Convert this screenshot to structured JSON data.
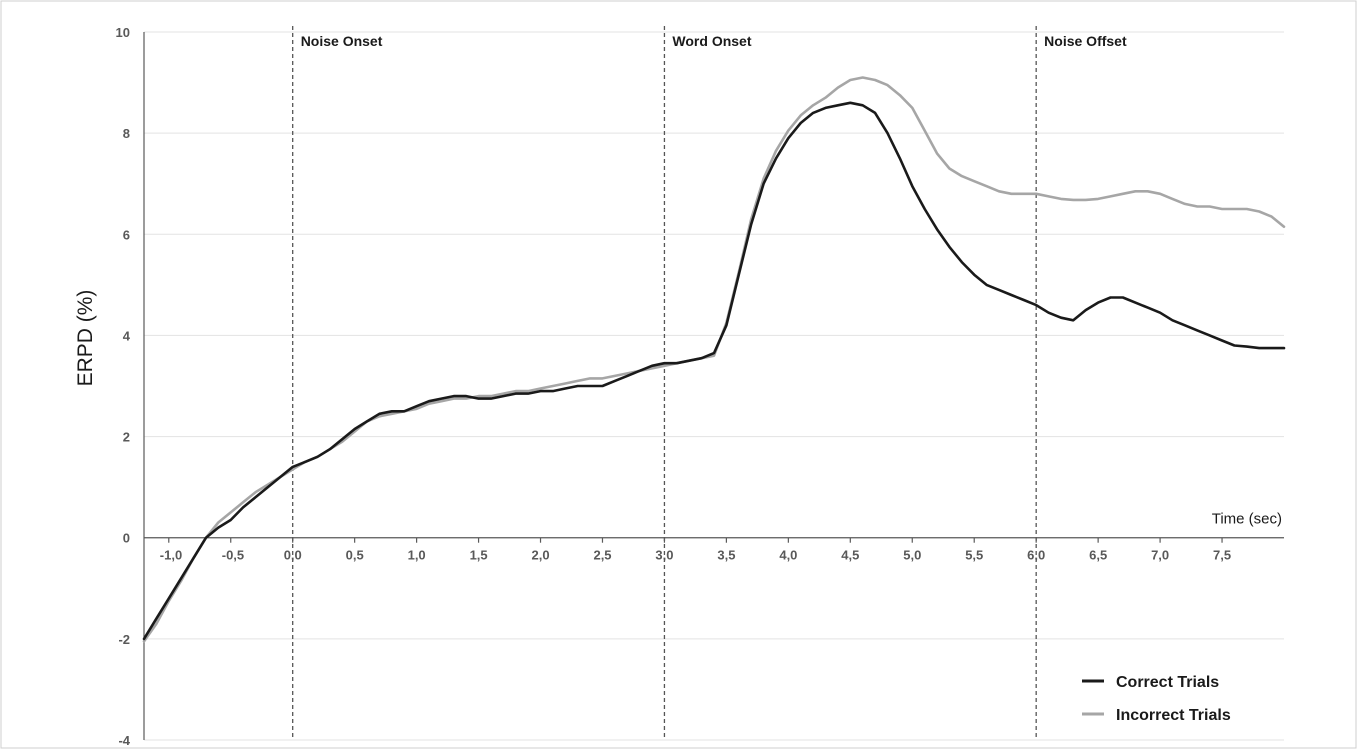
{
  "chart_data": {
    "type": "line",
    "title": "",
    "ylabel": "ERPD (%)",
    "xlabel": "Time (sec)",
    "xlim": [
      -1.2,
      8.0
    ],
    "ylim": [
      -4,
      10
    ],
    "grid": true,
    "legend": "bottom-right",
    "yticks": [
      10,
      8,
      6,
      4,
      2,
      0,
      -2,
      -4
    ],
    "xticks": [
      {
        "value": -1.0,
        "label": "-1,0"
      },
      {
        "value": -0.5,
        "label": "-0,5"
      },
      {
        "value": 0.0,
        "label": "0,0"
      },
      {
        "value": 0.5,
        "label": "0,5"
      },
      {
        "value": 1.0,
        "label": "1,0"
      },
      {
        "value": 1.5,
        "label": "1,5"
      },
      {
        "value": 2.0,
        "label": "2,0"
      },
      {
        "value": 2.5,
        "label": "2,5"
      },
      {
        "value": 3.0,
        "label": "3,0"
      },
      {
        "value": 3.5,
        "label": "3,5"
      },
      {
        "value": 4.0,
        "label": "4,0"
      },
      {
        "value": 4.5,
        "label": "4,5"
      },
      {
        "value": 5.0,
        "label": "5,0"
      },
      {
        "value": 5.5,
        "label": "5,5"
      },
      {
        "value": 6.0,
        "label": "6,0"
      },
      {
        "value": 6.5,
        "label": "6,5"
      },
      {
        "value": 7.0,
        "label": "7,0"
      },
      {
        "value": 7.5,
        "label": "7,5"
      }
    ],
    "events": [
      {
        "x": 0.0,
        "label": "Noise Onset"
      },
      {
        "x": 3.0,
        "label": "Word Onset"
      },
      {
        "x": 6.0,
        "label": "Noise Offset"
      }
    ],
    "series": [
      {
        "name": "Correct Trials",
        "color": "#1a1a1a",
        "x": [
          -1.2,
          -1.1,
          -1.0,
          -0.9,
          -0.8,
          -0.7,
          -0.6,
          -0.5,
          -0.4,
          -0.3,
          -0.2,
          -0.1,
          0.0,
          0.1,
          0.2,
          0.3,
          0.4,
          0.5,
          0.6,
          0.7,
          0.8,
          0.9,
          1.0,
          1.1,
          1.2,
          1.3,
          1.4,
          1.5,
          1.6,
          1.7,
          1.8,
          1.9,
          2.0,
          2.1,
          2.2,
          2.3,
          2.4,
          2.5,
          2.6,
          2.7,
          2.8,
          2.9,
          3.0,
          3.1,
          3.2,
          3.3,
          3.4,
          3.5,
          3.6,
          3.7,
          3.8,
          3.9,
          4.0,
          4.1,
          4.2,
          4.3,
          4.4,
          4.5,
          4.6,
          4.7,
          4.8,
          4.9,
          5.0,
          5.1,
          5.2,
          5.3,
          5.4,
          5.5,
          5.6,
          5.7,
          5.8,
          5.9,
          6.0,
          6.1,
          6.2,
          6.3,
          6.4,
          6.5,
          6.6,
          6.7,
          6.8,
          6.9,
          7.0,
          7.1,
          7.2,
          7.3,
          7.4,
          7.5,
          7.6,
          7.7,
          7.8,
          7.9,
          8.0
        ],
        "y": [
          -2.0,
          -1.6,
          -1.2,
          -0.8,
          -0.4,
          0.0,
          0.2,
          0.35,
          0.6,
          0.8,
          1.0,
          1.2,
          1.4,
          1.5,
          1.6,
          1.75,
          1.95,
          2.15,
          2.3,
          2.45,
          2.5,
          2.5,
          2.6,
          2.7,
          2.75,
          2.8,
          2.8,
          2.75,
          2.75,
          2.8,
          2.85,
          2.85,
          2.9,
          2.9,
          2.95,
          3.0,
          3.0,
          3.0,
          3.1,
          3.2,
          3.3,
          3.4,
          3.45,
          3.45,
          3.5,
          3.55,
          3.65,
          4.2,
          5.2,
          6.2,
          7.0,
          7.5,
          7.9,
          8.2,
          8.4,
          8.5,
          8.55,
          8.6,
          8.55,
          8.4,
          8.0,
          7.5,
          6.95,
          6.5,
          6.1,
          5.75,
          5.45,
          5.2,
          5.0,
          4.9,
          4.8,
          4.7,
          4.6,
          4.45,
          4.35,
          4.3,
          4.5,
          4.65,
          4.75,
          4.75,
          4.65,
          4.55,
          4.45,
          4.3,
          4.2,
          4.1,
          4.0,
          3.9,
          3.8,
          3.78,
          3.75,
          3.75,
          3.75
        ]
      },
      {
        "name": "Incorrect Trials",
        "color": "#a6a6a6",
        "x": [
          -1.2,
          -1.1,
          -1.0,
          -0.9,
          -0.8,
          -0.7,
          -0.6,
          -0.5,
          -0.4,
          -0.3,
          -0.2,
          -0.1,
          0.0,
          0.1,
          0.2,
          0.3,
          0.4,
          0.5,
          0.6,
          0.7,
          0.8,
          0.9,
          1.0,
          1.1,
          1.2,
          1.3,
          1.4,
          1.5,
          1.6,
          1.7,
          1.8,
          1.9,
          2.0,
          2.1,
          2.2,
          2.3,
          2.4,
          2.5,
          2.6,
          2.7,
          2.8,
          2.9,
          3.0,
          3.1,
          3.2,
          3.3,
          3.4,
          3.5,
          3.6,
          3.7,
          3.8,
          3.9,
          4.0,
          4.1,
          4.2,
          4.3,
          4.4,
          4.5,
          4.6,
          4.7,
          4.8,
          4.9,
          5.0,
          5.1,
          5.2,
          5.3,
          5.4,
          5.5,
          5.6,
          5.7,
          5.8,
          5.9,
          6.0,
          6.1,
          6.2,
          6.3,
          6.4,
          6.5,
          6.6,
          6.7,
          6.8,
          6.9,
          7.0,
          7.1,
          7.2,
          7.3,
          7.4,
          7.5,
          7.6,
          7.7,
          7.8,
          7.9,
          8.0
        ],
        "y": [
          -2.05,
          -1.7,
          -1.25,
          -0.85,
          -0.4,
          0.0,
          0.3,
          0.5,
          0.7,
          0.9,
          1.05,
          1.2,
          1.35,
          1.5,
          1.6,
          1.75,
          1.9,
          2.1,
          2.3,
          2.4,
          2.45,
          2.5,
          2.55,
          2.65,
          2.7,
          2.75,
          2.75,
          2.8,
          2.8,
          2.85,
          2.9,
          2.9,
          2.95,
          3.0,
          3.05,
          3.1,
          3.15,
          3.15,
          3.2,
          3.25,
          3.3,
          3.35,
          3.4,
          3.45,
          3.5,
          3.55,
          3.6,
          4.25,
          5.25,
          6.3,
          7.1,
          7.65,
          8.05,
          8.35,
          8.55,
          8.7,
          8.9,
          9.05,
          9.1,
          9.05,
          8.95,
          8.75,
          8.5,
          8.05,
          7.6,
          7.3,
          7.15,
          7.05,
          6.95,
          6.85,
          6.8,
          6.8,
          6.8,
          6.75,
          6.7,
          6.68,
          6.68,
          6.7,
          6.75,
          6.8,
          6.85,
          6.85,
          6.8,
          6.7,
          6.6,
          6.55,
          6.55,
          6.5,
          6.5,
          6.5,
          6.45,
          6.35,
          6.15
        ]
      }
    ]
  }
}
